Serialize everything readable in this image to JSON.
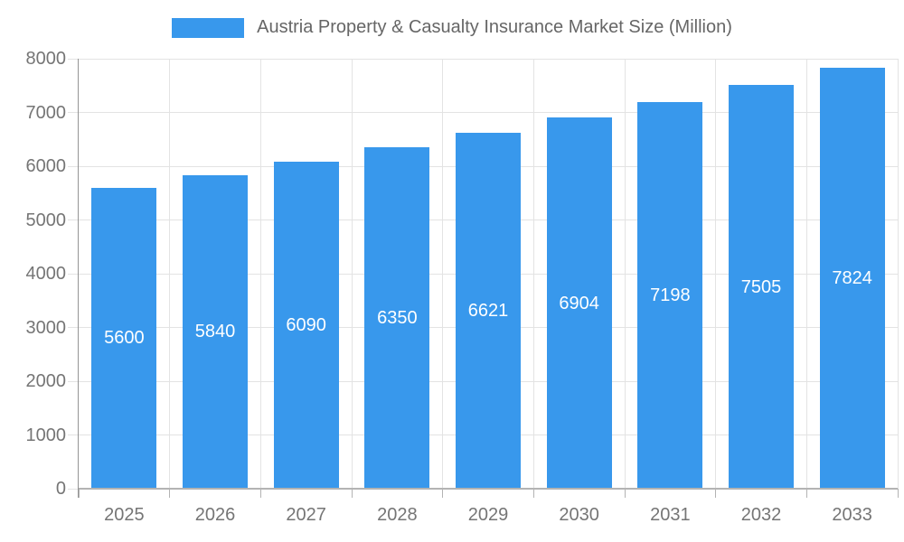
{
  "legend": {
    "position": "top",
    "label": "Austria Property & Casualty Insurance Market Size (Million)"
  },
  "chart_data": {
    "type": "bar",
    "title": "Austria Property & Casualty Insurance Market Size (Million)",
    "categories": [
      "2025",
      "2026",
      "2027",
      "2028",
      "2029",
      "2030",
      "2031",
      "2032",
      "2033"
    ],
    "values": [
      5600,
      5840,
      6090,
      6350,
      6621,
      6904,
      7198,
      7505,
      7824
    ],
    "series": [
      {
        "name": "Austria Property & Casualty Insurance Market Size (Million)",
        "values": [
          5600,
          5840,
          6090,
          6350,
          6621,
          6904,
          7198,
          7505,
          7824
        ]
      }
    ],
    "xlabel": "",
    "ylabel": "",
    "ylim": [
      0,
      8000
    ],
    "yticks": [
      0,
      1000,
      2000,
      3000,
      4000,
      5000,
      6000,
      7000,
      8000
    ],
    "grid": true,
    "legend_position": "top",
    "data_labels": "inside-center",
    "colors": {
      "bar": "#3898EC",
      "value_label": "#FFFFFF",
      "axis_text": "#757575",
      "title_text": "#666666",
      "gridline": "#E3E3E3",
      "y_axis_line": "#949494",
      "x_axis_line": "#B3B3B3"
    }
  }
}
